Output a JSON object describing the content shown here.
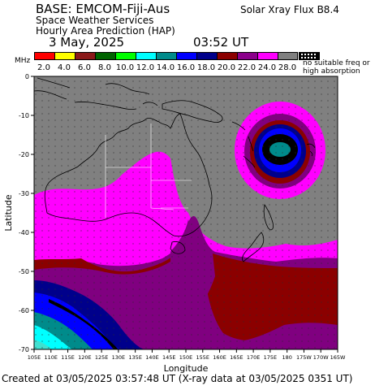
{
  "header": {
    "base_line": "BASE: EMCOM-Fiji-Aus",
    "service_line": "Space Weather Services",
    "product_line": "Hourly Area Prediction (HAP)",
    "date": "3 May, 2025",
    "time": "03:52 UT",
    "xray": "Solar Xray Flux B8.4"
  },
  "legend": {
    "unit": "MHz",
    "note_line1": "no suitable freq or",
    "note_line2": "high absorption",
    "items": [
      {
        "label": "2.0",
        "color": "#ff0000"
      },
      {
        "label": "4.0",
        "color": "#ffff00"
      },
      {
        "label": "6.0",
        "color": "#8b1a1a"
      },
      {
        "label": "8.0",
        "color": "#006400"
      },
      {
        "label": "10.0",
        "color": "#00ff00"
      },
      {
        "label": "12.0",
        "color": "#00ffff"
      },
      {
        "label": "14.0",
        "color": "#008b8b"
      },
      {
        "label": "16.0",
        "color": "#0000ff"
      },
      {
        "label": "18.0",
        "color": "#00008b"
      },
      {
        "label": "20.0",
        "color": "#8b0000"
      },
      {
        "label": "22.0",
        "color": "#8b008b"
      },
      {
        "label": "24.0",
        "color": "#ff00ff"
      },
      {
        "label": "28.0",
        "color": "#808080"
      }
    ]
  },
  "map": {
    "y_axis_title": "Latitude",
    "x_axis_title": "Longitude",
    "lat_ticks": [
      "0",
      "-10",
      "-20",
      "-30",
      "-40",
      "-50",
      "-60",
      "-70"
    ],
    "lon_ticks": [
      "105E",
      "110E",
      "115E",
      "120E",
      "125E",
      "130E",
      "135E",
      "140E",
      "145E",
      "150E",
      "155E",
      "160E",
      "165E",
      "170E",
      "175E",
      "180",
      "175W",
      "170W",
      "165W"
    ],
    "background_color": "#808080"
  },
  "footer": {
    "text": "Created at 03/05/2025 03:57:48 UT (X-ray data at 03/05/2025 0351 UT)"
  }
}
